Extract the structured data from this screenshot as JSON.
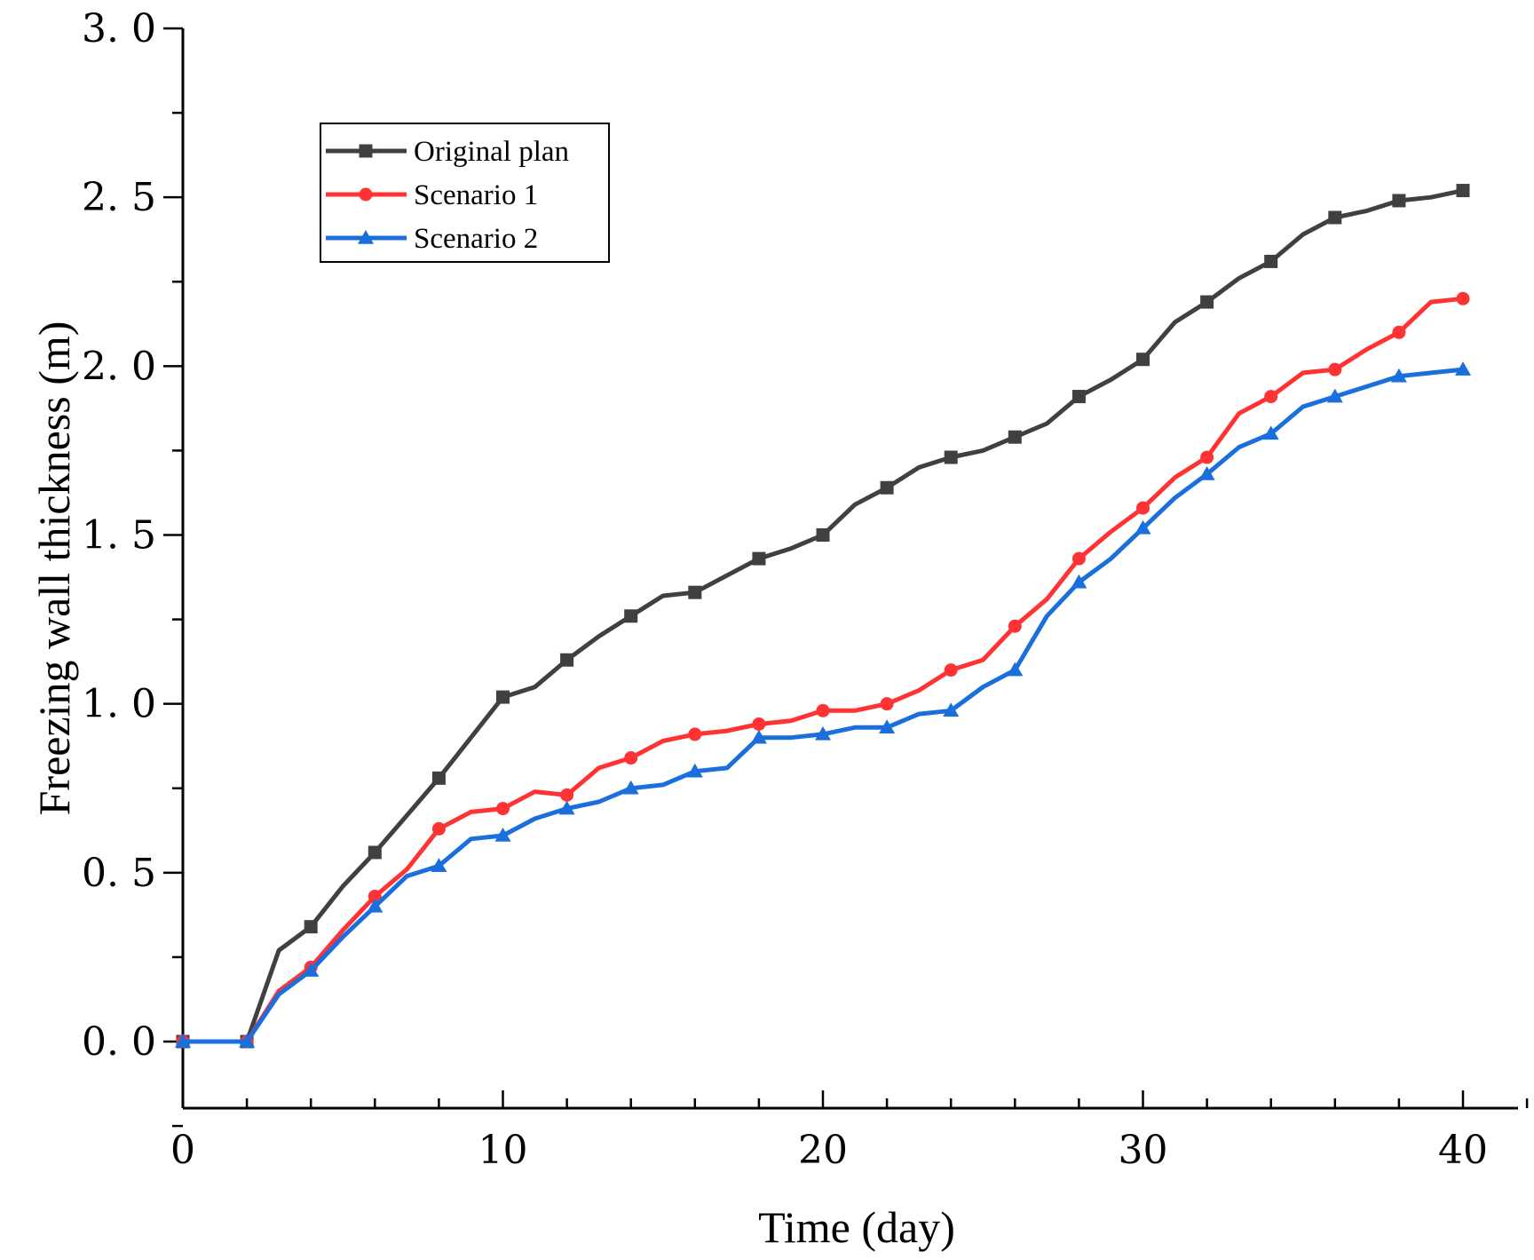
{
  "chart_data": {
    "type": "line",
    "title": "",
    "xlabel": "Time (day)",
    "ylabel": "Freezing wall thickness (m)",
    "xlim": [
      0,
      42
    ],
    "ylim": [
      -0.2,
      3.0
    ],
    "xticks": [
      0,
      10,
      20,
      30,
      40
    ],
    "xtick_labels": [
      "0",
      "10",
      "20",
      "30",
      "40"
    ],
    "yticks": [
      0.0,
      0.5,
      1.0,
      1.5,
      2.0,
      2.5,
      3.0
    ],
    "ytick_labels": [
      "0. 0",
      "0. 5",
      "1. 0",
      "1. 5",
      "2. 0",
      "2. 5",
      "3. 0"
    ],
    "legend_position": "top-left",
    "series": [
      {
        "name": "Original plan",
        "color": "#404040",
        "marker": "square",
        "x": [
          0,
          1,
          2,
          3,
          4,
          5,
          6,
          7,
          8,
          9,
          10,
          11,
          12,
          13,
          14,
          15,
          16,
          17,
          18,
          19,
          20,
          21,
          22,
          23,
          24,
          25,
          26,
          27,
          28,
          29,
          30,
          31,
          32,
          33,
          34,
          35,
          36,
          37,
          38,
          39,
          40
        ],
        "values": [
          0,
          0,
          0,
          0.27,
          0.34,
          0.46,
          0.56,
          0.67,
          0.78,
          0.9,
          1.02,
          1.05,
          1.13,
          1.2,
          1.26,
          1.32,
          1.33,
          1.38,
          1.43,
          1.46,
          1.5,
          1.59,
          1.64,
          1.7,
          1.73,
          1.75,
          1.79,
          1.83,
          1.91,
          1.96,
          2.02,
          2.13,
          2.19,
          2.26,
          2.31,
          2.39,
          2.44,
          2.46,
          2.49,
          2.5,
          2.52
        ],
        "marker_x": [
          0,
          2,
          4,
          6,
          8,
          10,
          12,
          14,
          16,
          18,
          20,
          22,
          24,
          26,
          28,
          30,
          32,
          34,
          36,
          38,
          40
        ]
      },
      {
        "name": "Scenario 1",
        "color": "#ff3333",
        "marker": "circle",
        "x": [
          0,
          1,
          2,
          3,
          4,
          5,
          6,
          7,
          8,
          9,
          10,
          11,
          12,
          13,
          14,
          15,
          16,
          17,
          18,
          19,
          20,
          21,
          22,
          23,
          24,
          25,
          26,
          27,
          28,
          29,
          30,
          31,
          32,
          33,
          34,
          35,
          36,
          37,
          38,
          39,
          40
        ],
        "values": [
          0,
          0,
          0,
          0.15,
          0.22,
          0.33,
          0.43,
          0.51,
          0.63,
          0.68,
          0.69,
          0.74,
          0.73,
          0.81,
          0.84,
          0.89,
          0.91,
          0.92,
          0.94,
          0.95,
          0.98,
          0.98,
          1.0,
          1.04,
          1.1,
          1.13,
          1.23,
          1.31,
          1.43,
          1.51,
          1.58,
          1.67,
          1.73,
          1.86,
          1.91,
          1.98,
          1.99,
          2.05,
          2.1,
          2.19,
          2.2
        ],
        "marker_x": [
          0,
          2,
          4,
          6,
          8,
          10,
          12,
          14,
          16,
          18,
          20,
          22,
          24,
          26,
          28,
          30,
          32,
          34,
          36,
          38,
          40
        ]
      },
      {
        "name": "Scenario 2",
        "color": "#1a6fdc",
        "marker": "triangle",
        "x": [
          0,
          1,
          2,
          3,
          4,
          5,
          6,
          7,
          8,
          9,
          10,
          11,
          12,
          13,
          14,
          15,
          16,
          17,
          18,
          19,
          20,
          21,
          22,
          23,
          24,
          25,
          26,
          27,
          28,
          29,
          30,
          31,
          32,
          33,
          34,
          35,
          36,
          37,
          38,
          39,
          40
        ],
        "values": [
          0,
          0,
          0,
          0.14,
          0.21,
          0.31,
          0.4,
          0.49,
          0.52,
          0.6,
          0.61,
          0.66,
          0.69,
          0.71,
          0.75,
          0.76,
          0.8,
          0.81,
          0.9,
          0.9,
          0.91,
          0.93,
          0.93,
          0.97,
          0.98,
          1.05,
          1.1,
          1.26,
          1.36,
          1.43,
          1.52,
          1.61,
          1.68,
          1.76,
          1.8,
          1.88,
          1.91,
          1.94,
          1.97,
          1.98,
          1.99
        ],
        "marker_x": [
          0,
          2,
          4,
          6,
          8,
          10,
          12,
          14,
          16,
          18,
          20,
          22,
          24,
          26,
          28,
          30,
          32,
          34,
          36,
          38,
          40
        ]
      }
    ]
  }
}
